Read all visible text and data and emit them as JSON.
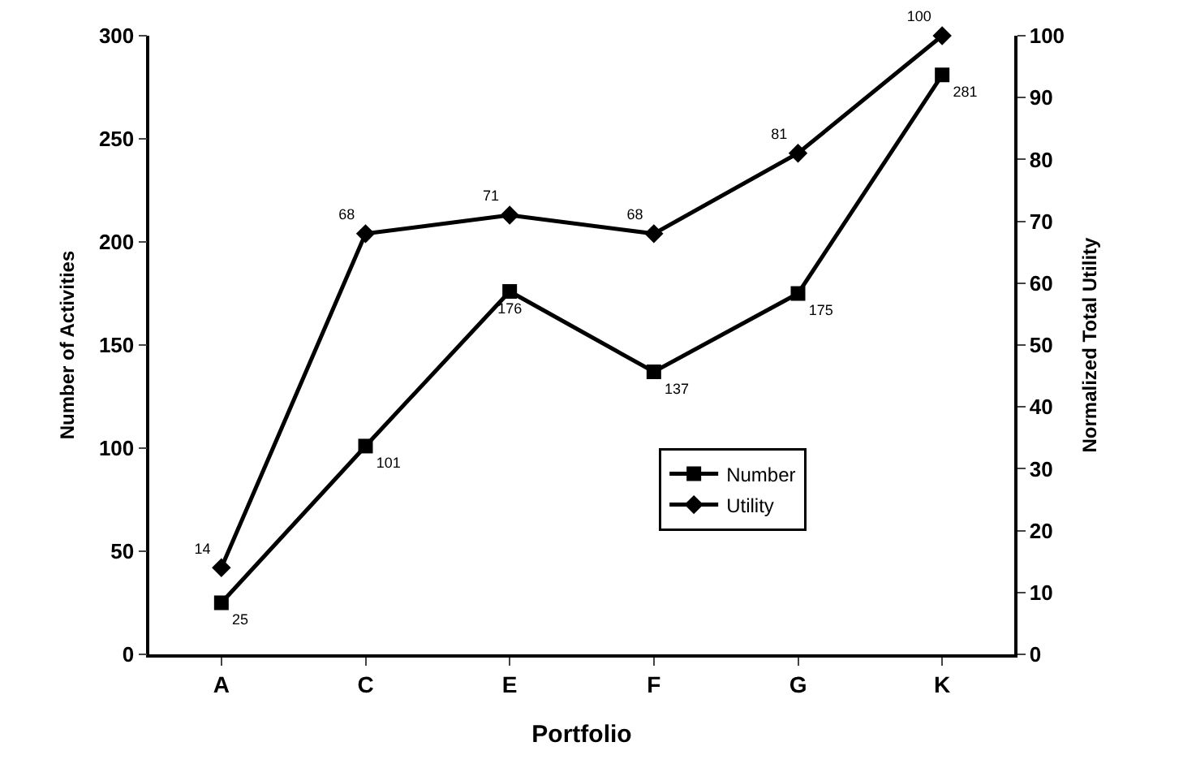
{
  "chart_data": {
    "type": "line",
    "xlabel": "Portfolio",
    "ylabel": "Number of Activities",
    "y2label": "Normalized Total Utility",
    "categories": [
      "A",
      "C",
      "E",
      "F",
      "G",
      "K"
    ],
    "series": [
      {
        "name": "Number",
        "color": "#000000",
        "marker": "square",
        "values": [
          25,
          101,
          176,
          137,
          175,
          281
        ]
      },
      {
        "name": "Utility",
        "color": "#000000",
        "marker": "diamond",
        "axis": "y2",
        "values": [
          14,
          68,
          71,
          68,
          81,
          100
        ]
      }
    ],
    "ylim": [
      0,
      300
    ],
    "yticks": [
      0,
      50,
      100,
      150,
      200,
      250,
      300
    ],
    "y2lim": [
      0,
      100
    ],
    "y2ticks": [
      0,
      10,
      20,
      30,
      40,
      50,
      60,
      70,
      80,
      90,
      100
    ],
    "data_labels": true,
    "grid": false,
    "legend": "bottom right",
    "line_style": "solid"
  }
}
